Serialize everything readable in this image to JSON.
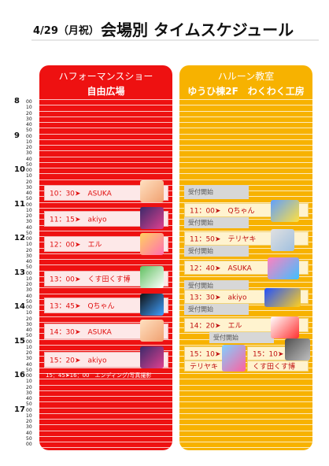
{
  "header": {
    "date": "4/29（月祝）",
    "title": "会場別 タイムスケジュール"
  },
  "hours": [
    "8",
    "9",
    "10",
    "11",
    "12",
    "13",
    "14",
    "15",
    "16",
    "17"
  ],
  "minute_labels": [
    "00",
    "10",
    "20",
    "30",
    "40",
    "50"
  ],
  "left_panel": {
    "title": "ハフォーマンスショー",
    "venue": "自由広場",
    "events": [
      {
        "label": "10：30➤　ASUKA"
      },
      {
        "label": "11：15➤　akiyo"
      },
      {
        "label": "12：00➤　エル"
      },
      {
        "label": "13：00➤　くす田くす博"
      },
      {
        "label": "13：45➤　Qちゃん"
      },
      {
        "label": "14：30➤　ASUKA"
      },
      {
        "label": "15：20➤　akiyo"
      }
    ],
    "ending_note": "15：45➤16：00　エンディング/写真撮影"
  },
  "right_panel": {
    "title": "ハルーン教室",
    "venue": "ゆうひ棟2F　わくわく工房",
    "reception_label": "受付開始",
    "events": [
      {
        "label": "11：00➤　Qちゃん"
      },
      {
        "label": "11：50➤　テリヤキ"
      },
      {
        "label": "12：40➤　ASUKA"
      },
      {
        "label": "13：30➤　akiyo"
      },
      {
        "label": "14：20➤　エル"
      },
      {
        "label": "15：10➤"
      },
      {
        "label": "15：10➤"
      }
    ],
    "names": [
      "テリヤキ",
      "くす田くす博"
    ]
  }
}
